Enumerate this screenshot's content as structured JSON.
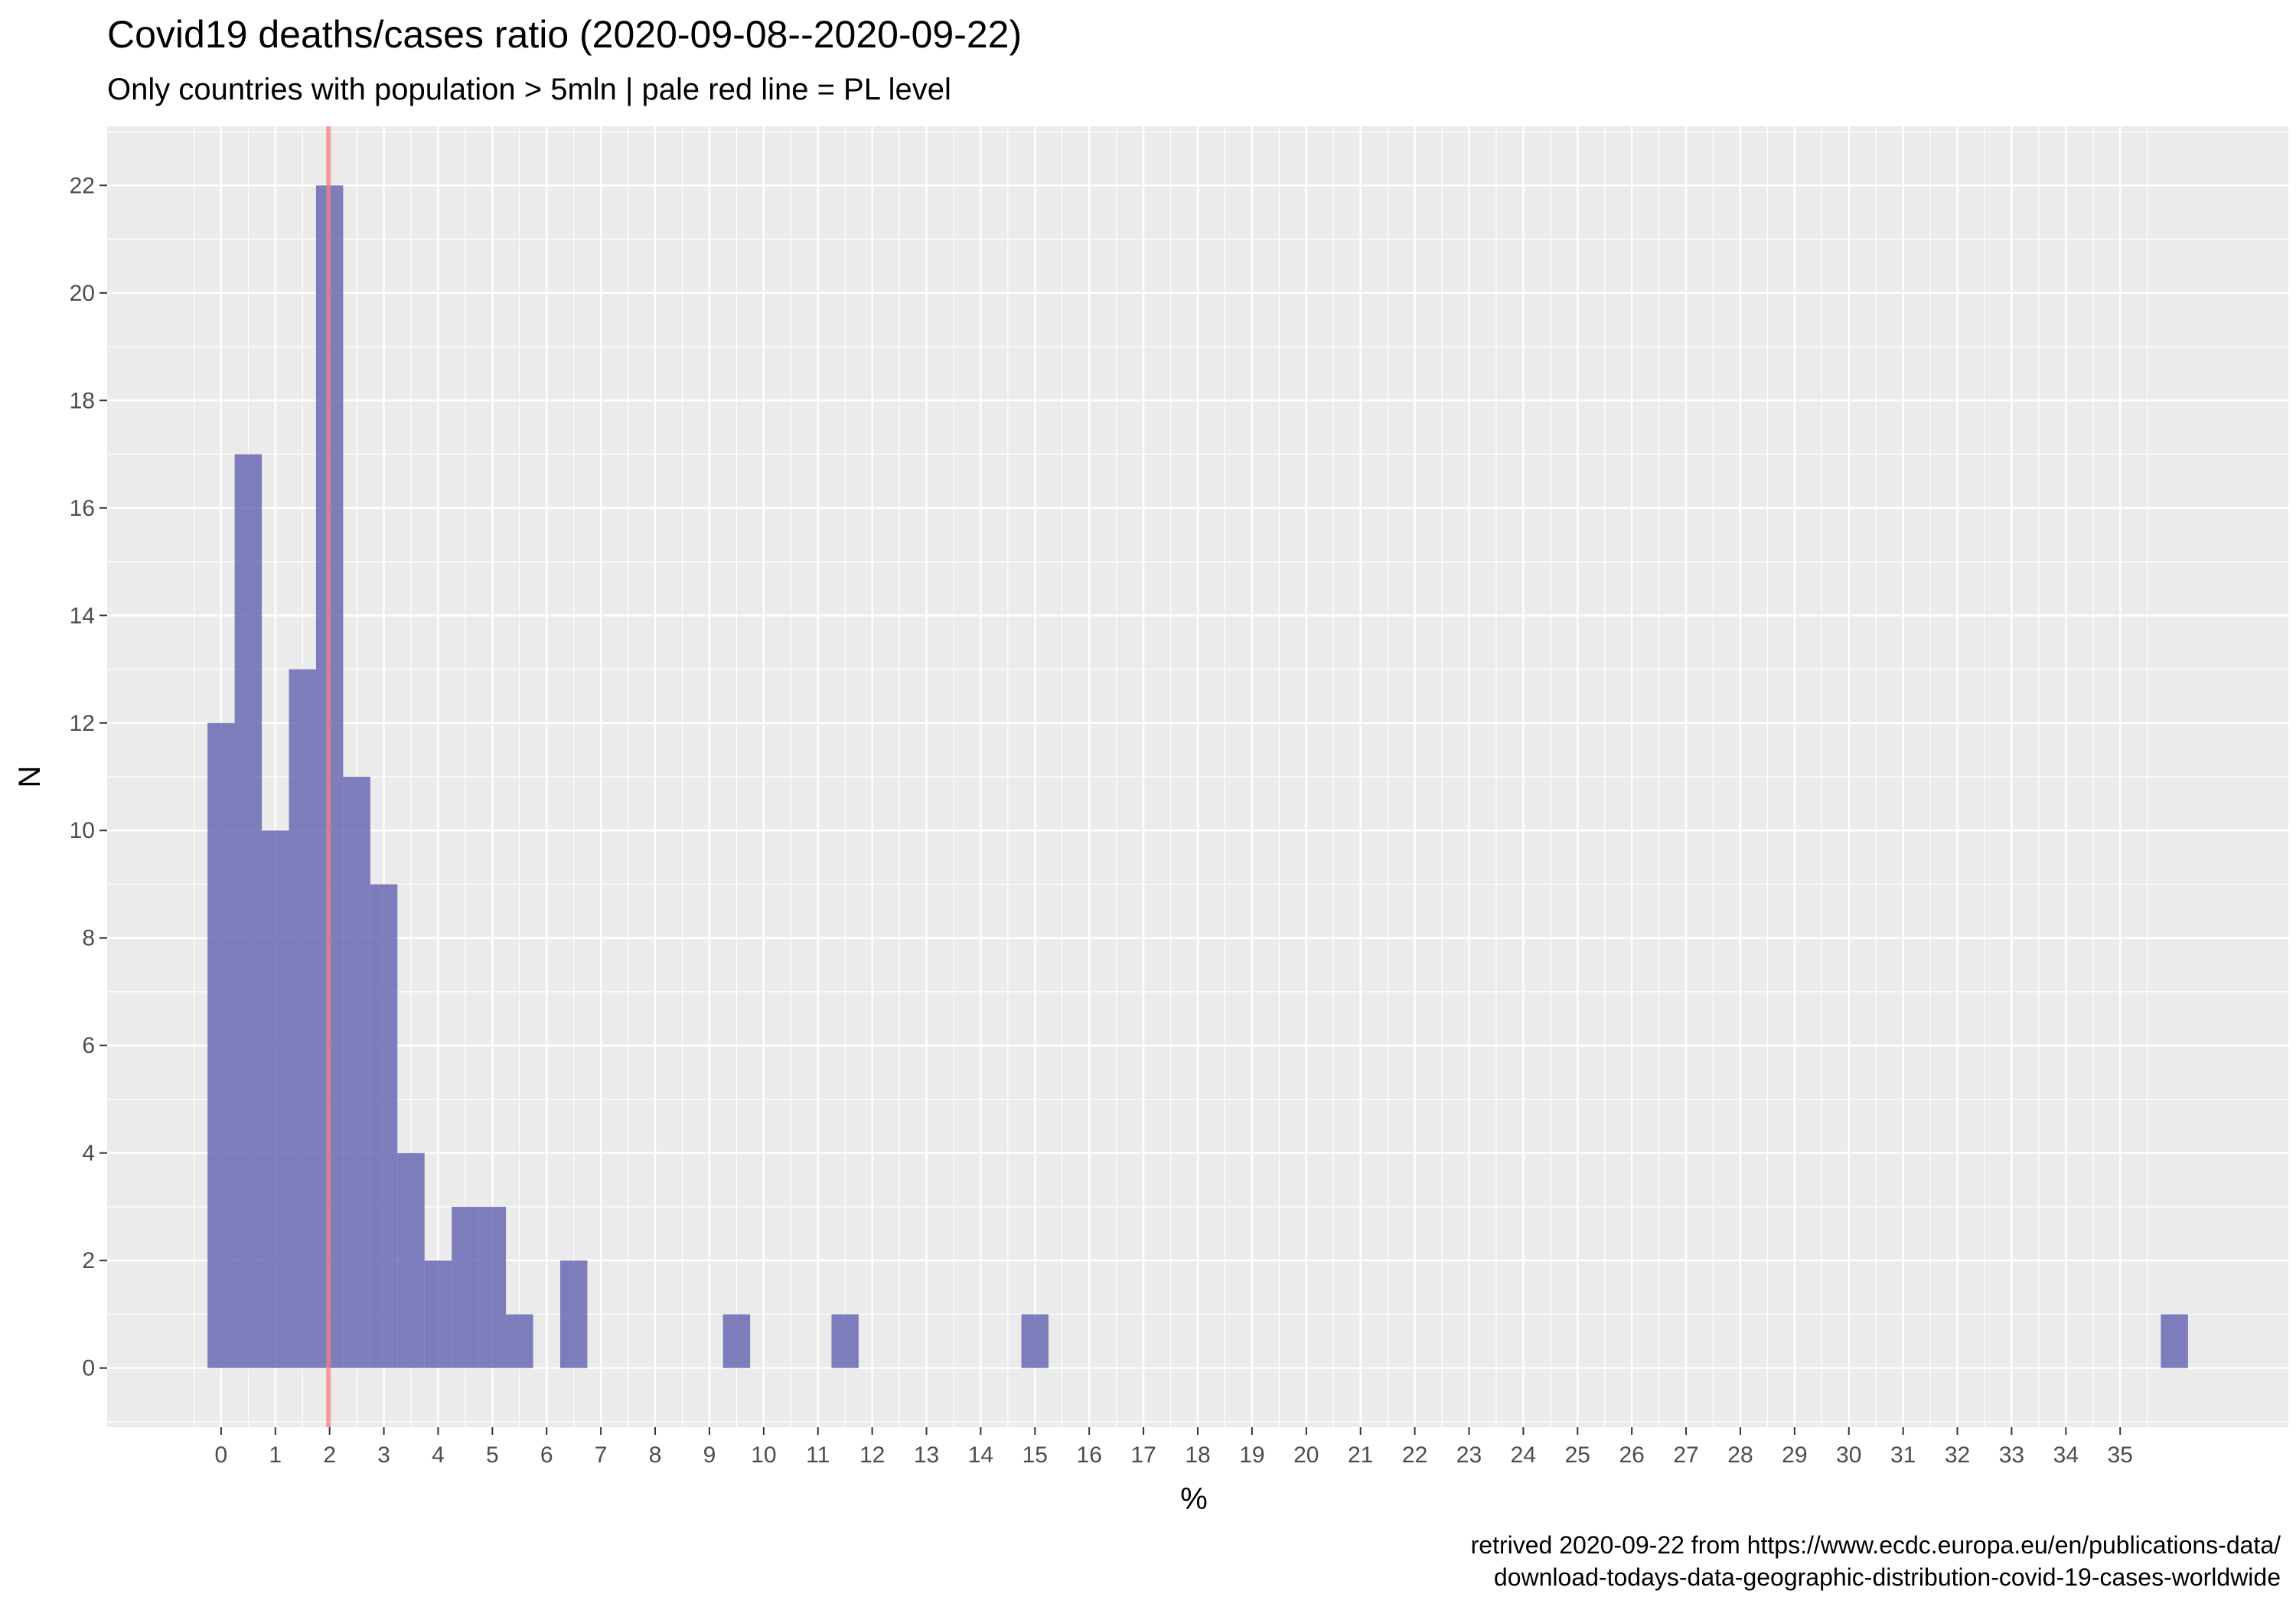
{
  "chart_data": {
    "type": "bar",
    "title": "Covid19 deaths/cases ratio (2020-09-08--2020-09-22)",
    "subtitle": "Only countries with population > 5mln  | pale red line = PL level",
    "xlabel": "%",
    "ylabel": "N",
    "caption_line1": "retrived 2020-09-22 from https://www.ecdc.europa.eu/en/publications-data/",
    "caption_line2": "download-todays-data-geographic-distribution-covid-19-cases-worldwide",
    "xlim": [
      -2.1,
      38.1
    ],
    "ylim": [
      -1.1,
      23.1
    ],
    "x_ticks": [
      0,
      1,
      2,
      3,
      4,
      5,
      6,
      7,
      8,
      9,
      10,
      11,
      12,
      13,
      14,
      15,
      16,
      17,
      18,
      19,
      20,
      21,
      22,
      23,
      24,
      25,
      26,
      27,
      28,
      29,
      30,
      31,
      32,
      33,
      34,
      35
    ],
    "x_tick_labels": [
      "0",
      "1",
      "2",
      "3",
      "4",
      "5",
      "6",
      "7",
      "8",
      "9",
      "10",
      "11",
      "12",
      "13",
      "14",
      "15",
      "16",
      "17",
      "18",
      "19",
      "20",
      "21",
      "22",
      "23",
      "24",
      "25",
      "26",
      "27",
      "28",
      "29",
      "30",
      "31",
      "32",
      "33",
      "34",
      "35"
    ],
    "y_ticks": [
      0,
      2,
      4,
      6,
      8,
      10,
      12,
      14,
      16,
      18,
      20,
      22
    ],
    "y_tick_labels": [
      "0",
      "2",
      "4",
      "6",
      "8",
      "10",
      "12",
      "14",
      "16",
      "18",
      "20",
      "22"
    ],
    "bin_width": 0.5,
    "bins": [
      {
        "start": -0.25,
        "end": 0.25,
        "count": 12
      },
      {
        "start": 0.25,
        "end": 0.75,
        "count": 17
      },
      {
        "start": 0.75,
        "end": 1.25,
        "count": 10
      },
      {
        "start": 1.25,
        "end": 1.75,
        "count": 13
      },
      {
        "start": 1.75,
        "end": 2.25,
        "count": 22
      },
      {
        "start": 2.25,
        "end": 2.75,
        "count": 11
      },
      {
        "start": 2.75,
        "end": 3.25,
        "count": 9
      },
      {
        "start": 3.25,
        "end": 3.75,
        "count": 4
      },
      {
        "start": 3.75,
        "end": 4.25,
        "count": 2
      },
      {
        "start": 4.25,
        "end": 4.75,
        "count": 3
      },
      {
        "start": 4.75,
        "end": 5.25,
        "count": 3
      },
      {
        "start": 5.25,
        "end": 5.75,
        "count": 1
      },
      {
        "start": 6.25,
        "end": 6.75,
        "count": 2
      },
      {
        "start": 9.25,
        "end": 9.75,
        "count": 1
      },
      {
        "start": 11.25,
        "end": 11.75,
        "count": 1
      },
      {
        "start": 14.75,
        "end": 15.25,
        "count": 1
      },
      {
        "start": 35.75,
        "end": 36.25,
        "count": 1
      }
    ],
    "reference_line": {
      "x": 1.98
    },
    "bar_color": "#6161b0",
    "bar_opacity": 0.8,
    "reference_line_color": "#f08080",
    "panel_background": "#ebebeb",
    "grid": true,
    "legend": "none"
  }
}
